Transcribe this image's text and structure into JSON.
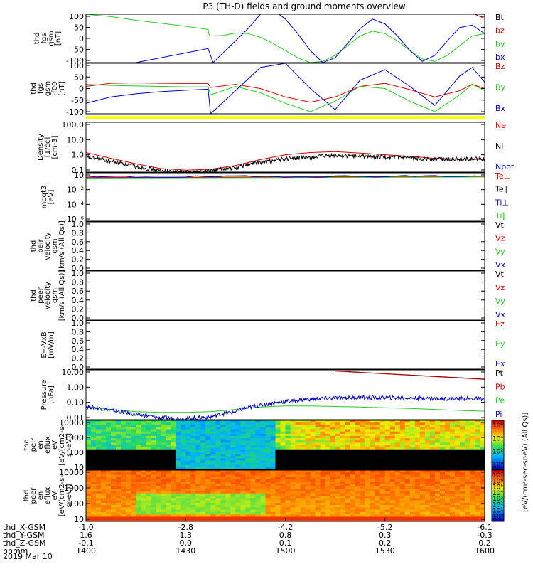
{
  "title": "P3 (TH-D) fields and ground moments overview",
  "colors": {
    "black": "#000000",
    "red": "#dd0000",
    "green": "#22cc22",
    "blue": "#0000cc",
    "yellow": "#ffff00",
    "cyan_bar": "#00ffff"
  },
  "ephemeris": {
    "rows": [
      {
        "label": "thd_X-GSM",
        "values": [
          "-1.0",
          "-2.8",
          "-4.2",
          "-5.2",
          "-6.1"
        ]
      },
      {
        "label": "thd_Y-GSM",
        "values": [
          "1.6",
          "1.3",
          "0.8",
          "0.3",
          "-0.3"
        ]
      },
      {
        "label": "thd_Z-GSM",
        "values": [
          "-0.1",
          "0.0",
          "0.1",
          "0.2",
          "0.2"
        ]
      },
      {
        "label": "hhmm",
        "values": [
          "1400",
          "1430",
          "1500",
          "1530",
          "1600"
        ]
      }
    ],
    "date": "2019 Mar 10"
  },
  "chart_data": [
    {
      "type": "line",
      "id": "fgs",
      "ylabel": [
        "thd",
        "fgs",
        "gsm",
        "[nT]"
      ],
      "ylim": [
        -100,
        100
      ],
      "yticks": [
        "100",
        "50",
        "0",
        "-50",
        "-100"
      ],
      "legend": [
        {
          "name": "Bt",
          "color": "#000000"
        },
        {
          "name": "bz",
          "color": "#dd0000"
        },
        {
          "name": "by",
          "color": "#22cc22"
        },
        {
          "name": "bx",
          "color": "#0000cc"
        }
      ],
      "series": [
        {
          "color": "#dd0000",
          "x": [
            1556,
            1560
          ],
          "y": [
            100,
            83
          ]
        },
        {
          "color": "#22cc22",
          "x": [
            1400,
            1410,
            1420,
            1430,
            1440,
            1449,
            1449.5,
            1455,
            1460,
            1465,
            1470,
            1475,
            1480,
            1485,
            1490,
            1495,
            1500,
            1505,
            1510,
            1515,
            1520,
            1525,
            1530,
            1535,
            1540,
            1545,
            1550,
            1555,
            1560
          ],
          "y": [
            100,
            90,
            75,
            63,
            50,
            37,
            10,
            12,
            22,
            20,
            5,
            -20,
            -50,
            -80,
            -100,
            -95,
            -70,
            -30,
            10,
            30,
            20,
            -10,
            -50,
            -85,
            -95,
            -70,
            -30,
            10,
            20
          ]
        },
        {
          "color": "#0000cc",
          "x": [
            1400,
            1410,
            1420,
            1430,
            1440,
            1449,
            1451,
            1455,
            1460,
            1465,
            1470,
            1475,
            1480,
            1485,
            1490,
            1495,
            1500,
            1505,
            1510,
            1515,
            1520,
            1525,
            1530,
            1535,
            1540,
            1545,
            1550,
            1555,
            1560
          ],
          "y": [
            -140,
            -120,
            -100,
            -80,
            -60,
            -42,
            -100,
            -60,
            -10,
            40,
            100,
            120,
            80,
            20,
            -50,
            -100,
            -80,
            -20,
            40,
            80,
            60,
            10,
            -50,
            -95,
            -70,
            -10,
            45,
            55,
            20
          ]
        }
      ]
    },
    {
      "type": "line",
      "id": "fgs-fixed",
      "ylabel": [
        "thd",
        "fgs",
        "gsm",
        "-f00",
        "[nT]"
      ],
      "ylim": [
        -120,
        120
      ],
      "yticks": [
        "100",
        "50",
        "0",
        "-50",
        "-100"
      ],
      "legend": [
        {
          "name": "Bz",
          "color": "#dd0000"
        },
        {
          "name": "By",
          "color": "#22cc22"
        },
        {
          "name": "Bx",
          "color": "#0000cc"
        }
      ],
      "series": [
        {
          "color": "#dd0000",
          "x": [
            1400,
            1410,
            1420,
            1430,
            1440,
            1449,
            1450,
            1460,
            1470,
            1480,
            1490,
            1500,
            1510,
            1520,
            1530,
            1540,
            1550,
            1555,
            1560
          ],
          "y": [
            10,
            25,
            27,
            25,
            24,
            24,
            5,
            20,
            0,
            -40,
            -65,
            -40,
            10,
            25,
            -5,
            -40,
            -10,
            20,
            0
          ]
        },
        {
          "color": "#22cc22",
          "x": [
            1400,
            1410,
            1420,
            1430,
            1440,
            1449,
            1450,
            1460,
            1470,
            1480,
            1490,
            1500,
            1510,
            1520,
            1530,
            1540,
            1550,
            1555,
            1560
          ],
          "y": [
            20,
            15,
            12,
            10,
            8,
            8,
            -30,
            10,
            -20,
            -70,
            -110,
            -60,
            10,
            0,
            -60,
            -110,
            -30,
            20,
            -10
          ]
        },
        {
          "color": "#0000cc",
          "x": [
            1400,
            1410,
            1420,
            1430,
            1440,
            1449,
            1450,
            1460,
            1470,
            1480,
            1490,
            1500,
            1510,
            1520,
            1530,
            1540,
            1550,
            1555,
            1560
          ],
          "y": [
            -70,
            -40,
            -25,
            -15,
            -8,
            -3,
            -120,
            -10,
            100,
            120,
            0,
            -100,
            40,
            90,
            10,
            -80,
            60,
            100,
            30
          ]
        }
      ]
    },
    {
      "type": "line",
      "id": "density",
      "log": true,
      "ylabel": [
        "Density",
        "[1/cc]",
        "[cm-3]"
      ],
      "ylim": [
        0.05,
        200
      ],
      "yticks": [
        "100.0",
        "10.0",
        "1.0",
        "0.1"
      ],
      "legend": [
        {
          "name": "Ne",
          "color": "#dd0000"
        },
        {
          "name": "Ni",
          "color": "#000000"
        },
        {
          "name": "Npot",
          "color": "#0000cc"
        }
      ],
      "series": [
        {
          "color": "#dd0000",
          "x": [
            1400,
            1410,
            1420,
            1430,
            1440,
            1450,
            1460,
            1470,
            1480,
            1490,
            1500,
            1510,
            1520,
            1530,
            1540,
            1550,
            1560
          ],
          "y": [
            1.3,
            0.5,
            0.2,
            0.09,
            0.07,
            0.08,
            0.15,
            0.4,
            0.9,
            1.3,
            1.5,
            1.2,
            0.9,
            0.7,
            0.5,
            0.45,
            0.4
          ]
        },
        {
          "color": "#000000",
          "noisy": true,
          "x": [
            1400,
            1410,
            1420,
            1430,
            1440,
            1450,
            1460,
            1470,
            1480,
            1490,
            1500,
            1510,
            1520,
            1530,
            1540,
            1550,
            1560
          ],
          "y": [
            0.6,
            0.3,
            0.12,
            0.06,
            0.05,
            0.06,
            0.1,
            0.25,
            0.45,
            0.6,
            0.75,
            0.7,
            0.6,
            0.5,
            0.45,
            0.45,
            0.45
          ]
        }
      ]
    },
    {
      "type": "line",
      "id": "temp",
      "log": true,
      "ylabel": [
        "moqt3",
        "[eV]"
      ],
      "ylim": [
        3e-07,
        30
      ],
      "yticks": [
        "10",
        "10⁻²",
        "10⁻⁴",
        "10⁻⁶"
      ],
      "legend": [
        {
          "name": "Te⊥",
          "color": "#dd0000"
        },
        {
          "name": "Te∥",
          "color": "#000000"
        },
        {
          "name": "Ti⊥",
          "color": "#0000cc"
        },
        {
          "name": "Ti∥",
          "color": "#22cc22"
        }
      ],
      "series": [
        {
          "color": "#22cc22",
          "x": [
            1400,
            1560
          ],
          "y": [
            4,
            6
          ]
        },
        {
          "color": "#dd0000",
          "x": [
            1400,
            1560
          ],
          "y": [
            5,
            8
          ]
        },
        {
          "color": "#0000cc",
          "noisy": true,
          "x": [
            1400,
            1560
          ],
          "y": [
            6,
            9
          ]
        }
      ]
    },
    {
      "type": "line",
      "id": "ion-velocity",
      "ylabel": [
        "thd",
        "peir",
        "velocity",
        "gsm",
        "[km/s (All Qs)]"
      ],
      "ylim": [
        0,
        1
      ],
      "yticks": [
        "1.0",
        "0.8",
        "0.6",
        "0.4",
        "0.2",
        "0.0"
      ],
      "legend": [
        {
          "name": "Vt",
          "color": "#000000"
        },
        {
          "name": "Vz",
          "color": "#dd0000"
        },
        {
          "name": "Vy",
          "color": "#22cc22"
        },
        {
          "name": "Vx",
          "color": "#0000cc"
        }
      ],
      "series": []
    },
    {
      "type": "line",
      "id": "electron-velocity",
      "ylabel": [
        "thd",
        "peer",
        "velocity",
        "gsm",
        "[km/s (All Qs)]"
      ],
      "ylim": [
        0,
        1
      ],
      "yticks": [
        "1.0",
        "0.8",
        "0.6",
        "0.4",
        "0.2",
        "0.0"
      ],
      "legend": [
        {
          "name": "Vt",
          "color": "#000000"
        },
        {
          "name": "Vz",
          "color": "#dd0000"
        },
        {
          "name": "Vy",
          "color": "#22cc22"
        },
        {
          "name": "Vx",
          "color": "#0000cc"
        }
      ],
      "series": []
    },
    {
      "type": "line",
      "id": "efield",
      "ylabel": [
        "E=-VxB",
        "[mV/m]"
      ],
      "ylim": [
        0,
        1
      ],
      "yticks": [
        "1.0",
        "0.8",
        "0.6",
        "0.4",
        "0.2",
        "0.0"
      ],
      "legend": [
        {
          "name": "Ez",
          "color": "#dd0000"
        },
        {
          "name": "Ey",
          "color": "#22cc22"
        },
        {
          "name": "Ex",
          "color": "#0000cc"
        }
      ],
      "series": []
    },
    {
      "type": "line",
      "id": "pressure",
      "log": true,
      "ylabel": [
        "Pressure",
        "[nPa]"
      ],
      "ylim": [
        0.005,
        30
      ],
      "yticks": [
        "10.00",
        "1.00",
        "0.10",
        "0.01"
      ],
      "legend": [
        {
          "name": "Pt",
          "color": "#000000"
        },
        {
          "name": "Pb",
          "color": "#dd0000"
        },
        {
          "name": "Pe",
          "color": "#22cc22"
        },
        {
          "name": "Pi",
          "color": "#0000cc"
        }
      ],
      "series": [
        {
          "color": "#000000",
          "x": [
            1500,
            1560
          ],
          "y": [
            25,
            6
          ]
        },
        {
          "color": "#dd0000",
          "x": [
            1500,
            1560
          ],
          "y": [
            24,
            5.7
          ]
        },
        {
          "color": "#22cc22",
          "x": [
            1400,
            1410,
            1420,
            1430,
            1440,
            1450,
            1460,
            1470,
            1480,
            1490,
            1500,
            1510,
            1520,
            1530,
            1540,
            1550,
            1560
          ],
          "y": [
            0.05,
            0.03,
            0.02,
            0.018,
            0.018,
            0.02,
            0.03,
            0.045,
            0.055,
            0.055,
            0.05,
            0.045,
            0.04,
            0.035,
            0.03,
            0.025,
            0.022
          ]
        },
        {
          "color": "#0000cc",
          "noisy": true,
          "x": [
            1400,
            1410,
            1420,
            1430,
            1440,
            1450,
            1460,
            1470,
            1480,
            1490,
            1500,
            1510,
            1520,
            1530,
            1540,
            1550,
            1560
          ],
          "y": [
            0.05,
            0.025,
            0.012,
            0.007,
            0.006,
            0.008,
            0.02,
            0.06,
            0.12,
            0.18,
            0.22,
            0.24,
            0.23,
            0.22,
            0.2,
            0.2,
            0.19
          ]
        }
      ]
    },
    {
      "type": "heatmap",
      "id": "ion-spectrogram",
      "ylabel": [
        "thd",
        "peir",
        "en",
        "eflux",
        "eV",
        "[eV/(cm2-s-",
        "sr-eV)]"
      ],
      "yticks": [
        "10000",
        "1000",
        "100",
        "10"
      ],
      "colorbar": {
        "label": "[eV/(cm²-sec-sr-eV) (All Qs)]",
        "ticks": [
          "10⁶",
          "10⁴",
          "10²",
          "10⁰"
        ]
      }
    },
    {
      "type": "heatmap",
      "id": "electron-spectrogram",
      "ylabel": [
        "thd",
        "peer",
        "en",
        "eflux",
        "eV",
        "[eV/(cm2-s-",
        "sr-eV)]"
      ],
      "yticks": [
        "10000",
        "1000",
        "100",
        "10"
      ],
      "colorbar": {
        "label": "[eV/(cm²-sec-sr-eV) (All Qs)]",
        "ticks": [
          "10⁷",
          "10⁶",
          "10⁵",
          "10⁴",
          "10³",
          "10²",
          "10¹",
          "10⁰"
        ]
      }
    }
  ]
}
